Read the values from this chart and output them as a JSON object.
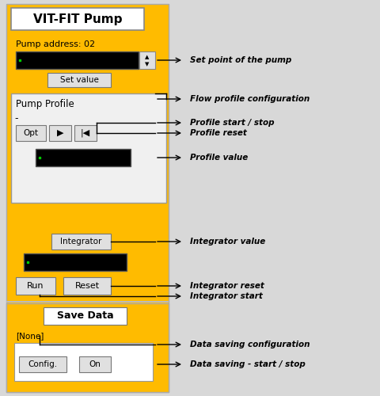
{
  "bg_color": "#FFBB00",
  "white": "#FFFFFF",
  "black": "#000000",
  "light_gray": "#E0E0E0",
  "panel_edge": "#999999",
  "bg_outer": "#D8D8D8",
  "title": "VIT-FIT Pump",
  "pump_address": "Pump address: 02",
  "set_value_label": "Set value",
  "pump_profile_label": "Pump Profile",
  "opt_label": "Opt",
  "integrator_label": "Integrator",
  "run_label": "Run",
  "reset_label": "Reset",
  "save_data_label": "Save Data",
  "none_label": "[None]",
  "config_label": "Config.",
  "on_label": "On",
  "fig_w": 4.81,
  "fig_h": 5.0,
  "dpi": 100,
  "annotations": [
    "Set point of the pump",
    "Flow profile configuration",
    "Profile start / stop",
    "Profile reset",
    "Profile value",
    "Integrator value",
    "Integrator reset",
    "Integrator start",
    "Data saving configuration",
    "Data saving - start / stop"
  ]
}
